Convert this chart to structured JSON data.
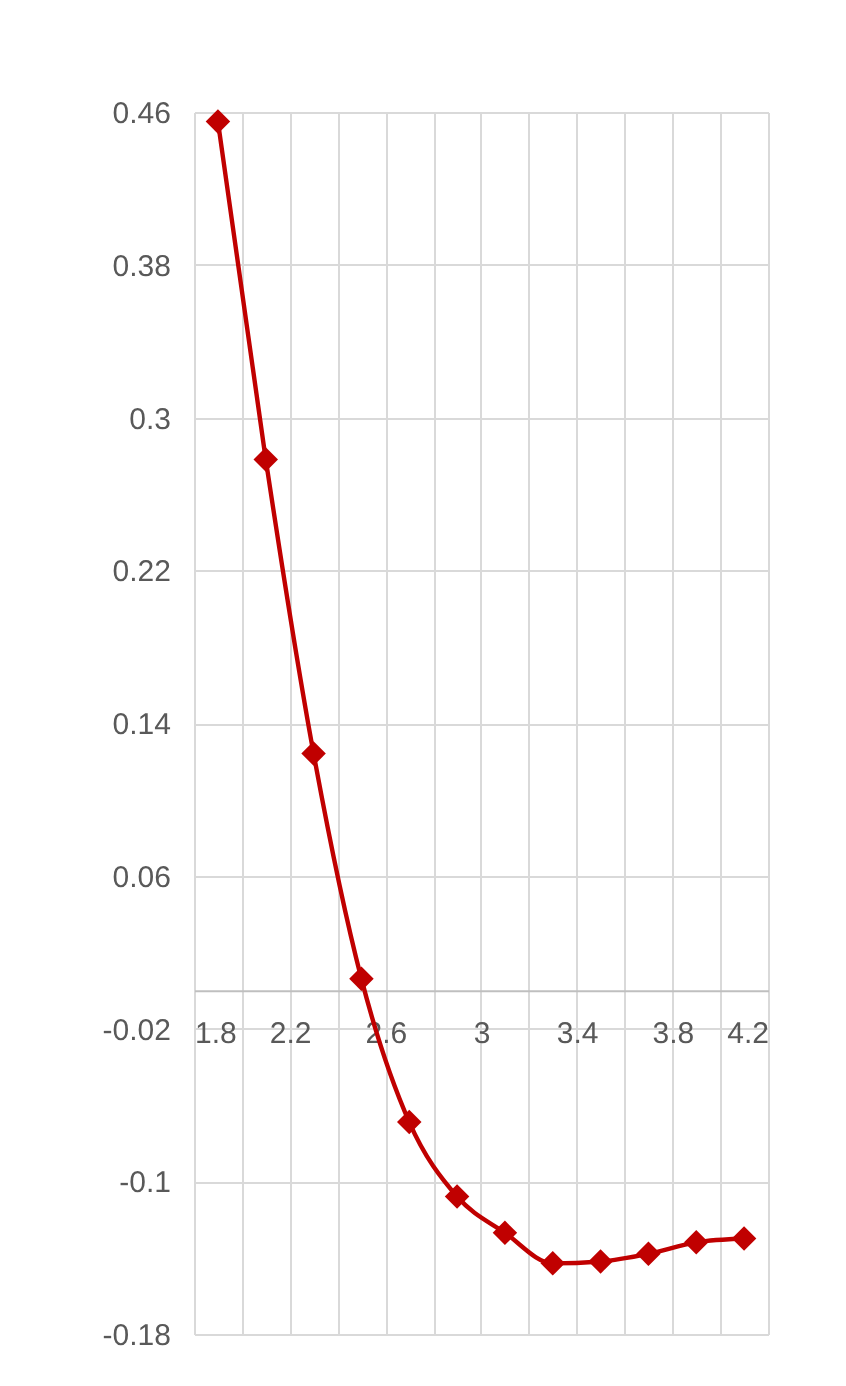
{
  "chart_data": {
    "type": "line",
    "x": [
      1.9,
      2.1,
      2.3,
      2.5,
      2.7,
      2.9,
      3.1,
      3.3,
      3.5,
      3.7,
      3.9,
      4.1
    ],
    "series": [
      {
        "color": "#c00000",
        "values": [
          0.455,
          0.278,
          0.124,
          0.006,
          -0.069,
          -0.108,
          -0.127,
          -0.143,
          -0.142,
          -0.138,
          -0.132,
          -0.13
        ]
      }
    ],
    "xlim": [
      1.8,
      4.2
    ],
    "xticks": [
      1.8,
      {
        "value": 2,
        "label": null
      },
      2.2,
      {
        "value": 2.4,
        "label": null
      },
      2.6,
      {
        "value": 2.8,
        "label": null
      },
      3,
      {
        "value": 3.2,
        "label": null
      },
      3.4,
      {
        "value": 3.6,
        "label": null
      },
      3.8,
      {
        "value": 4,
        "label": null
      },
      4.2
    ],
    "ylim": [
      -0.18,
      0.46
    ],
    "yticks": [
      -0.18,
      -0.1,
      -0.02,
      0.06,
      0.14,
      0.22,
      0.3,
      0.38,
      0.46
    ],
    "grid": true,
    "marker": "diamond",
    "line_style": "solid"
  }
}
